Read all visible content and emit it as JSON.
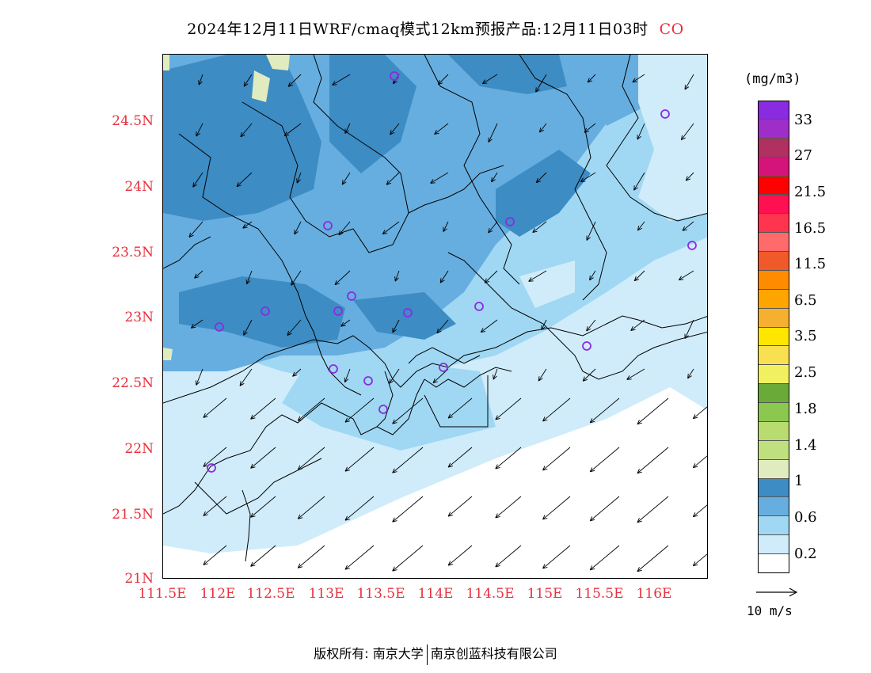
{
  "title": {
    "text": "2024年12月11日WRF/cmaq模式12km预报产品:12月11日03时",
    "species": "CO",
    "species_color": "#e8303c"
  },
  "map": {
    "lat_labels": [
      "24.5N",
      "24N",
      "23.5N",
      "23N",
      "22.5N",
      "22N",
      "21.5N",
      "21N"
    ],
    "lon_labels": [
      "111.5E",
      "112E",
      "112.5E",
      "113E",
      "113.5E",
      "114E",
      "114.5E",
      "115E",
      "115.5E",
      "116E"
    ],
    "label_color": "#e8303c",
    "station_marker_color": "#8b2be2",
    "wind_direction": "northeast, arrows pointing southwest"
  },
  "legend": {
    "unit": "(mg/m3)",
    "colors": [
      "#8a2be2",
      "#9d2fc8",
      "#b03060",
      "#d4147a",
      "#ff0000",
      "#ff1050",
      "#ff3550",
      "#ff6a6a",
      "#f05a2a",
      "#ff8c00",
      "#ffa500",
      "#f5b030",
      "#ffe600",
      "#f8e050",
      "#f0f060",
      "#6aaa38",
      "#8cc850",
      "#b8dc70",
      "#c0e080",
      "#e0ecc0",
      "#3d8cc4",
      "#66aee0",
      "#a0d8f4",
      "#d0ecfa",
      "#ffffff"
    ],
    "labels": [
      "33",
      "27",
      "21.5",
      "16.5",
      "11.5",
      "6.5",
      "3.5",
      "2.5",
      "1.8",
      "1.4",
      "1",
      "0.6",
      "0.2"
    ]
  },
  "reference_vector": {
    "label": "10  m/s"
  },
  "footer": {
    "copyright": "版权所有: 南京大学",
    "company": "南京创蓝科技有限公司"
  }
}
